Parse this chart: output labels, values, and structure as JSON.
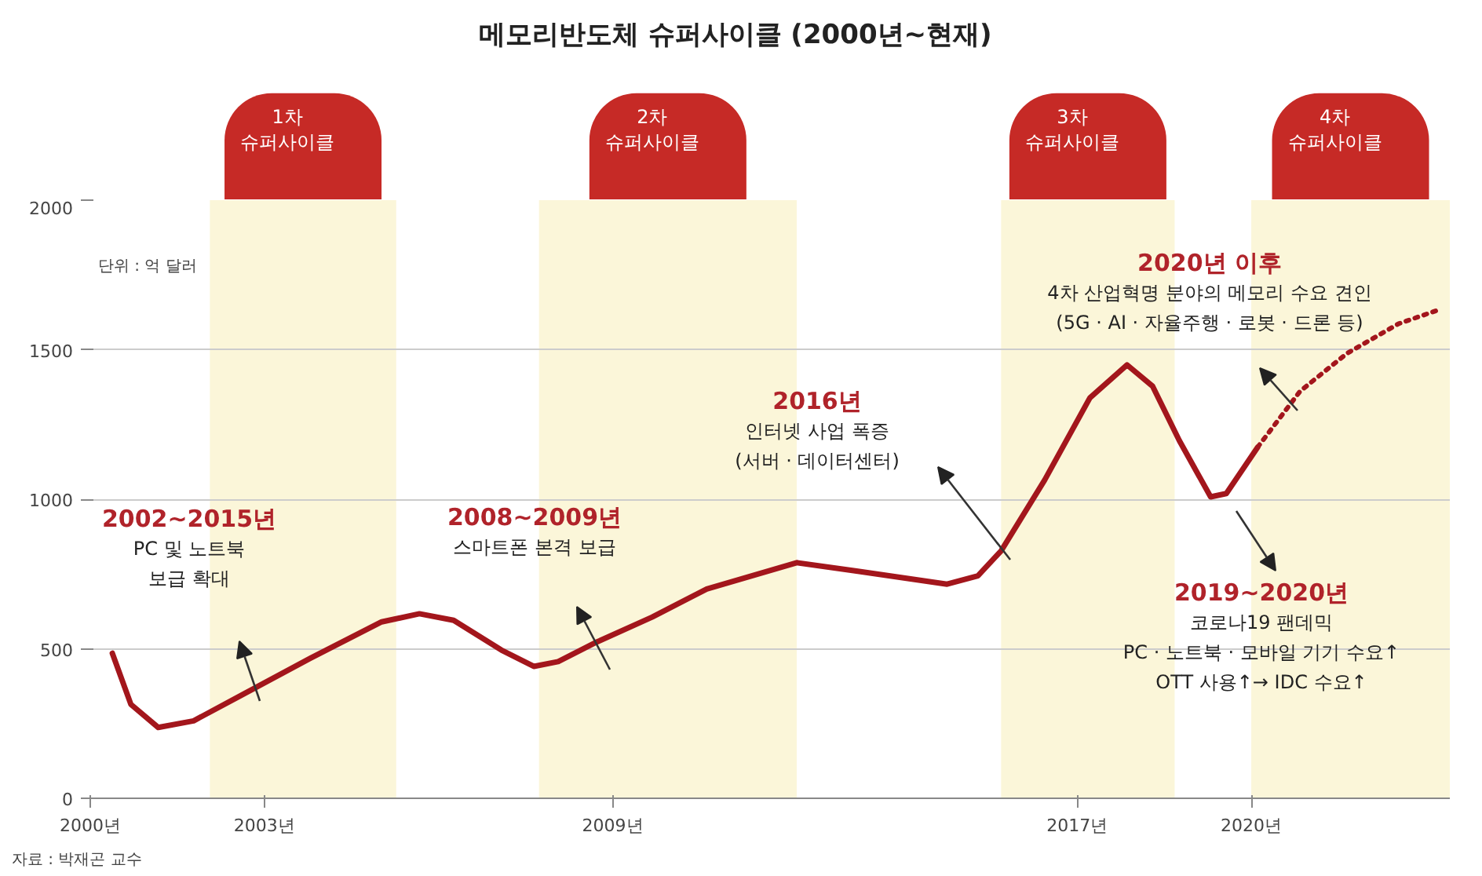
{
  "chart_data": {
    "type": "line",
    "title": "메모리반도체 슈퍼사이클 (2000년~현재)",
    "xlim": [
      2000,
      2023.42
    ],
    "ylim": [
      0,
      2000
    ],
    "xticks": [
      {
        "value": 2000,
        "label": "2000년"
      },
      {
        "value": 2003,
        "label": "2003년"
      },
      {
        "value": 2009,
        "label": "2009년"
      },
      {
        "value": 2017,
        "label": "2017년"
      },
      {
        "value": 2020,
        "label": "2020년"
      }
    ],
    "yticks": [
      0,
      500,
      1000,
      1500,
      2000
    ],
    "grid": "y",
    "line_style": "solid",
    "series": [
      {
        "color": "#a3161c",
        "x": [
          2000.38,
          2000.7,
          2001.17,
          2001.78,
          2002.58,
          2003.79,
          2005.02,
          2005.67,
          2006.26,
          2007.08,
          2007.64,
          2008.06,
          2008.73,
          2009.68,
          2010.62,
          2012.17,
          2013.2,
          2014.76,
          2015.29,
          2015.69,
          2016.44,
          2017.22,
          2017.86,
          2018.3,
          2018.76,
          2019.3,
          2019.57,
          2020.11
        ],
        "values": [
          485,
          314,
          237,
          259,
          342,
          468,
          590,
          617,
          595,
          496,
          441,
          457,
          523,
          606,
          700,
          788,
          760,
          716,
          744,
          827,
          1064,
          1339,
          1449,
          1378,
          1196,
          1008,
          1019,
          1174
        ]
      },
      {
        "color": "#a3161c",
        "line_style": "dotted",
        "x": [
          2020.11,
          2020.84,
          2021.65,
          2022.54,
          2023.27
        ],
        "values": [
          1174,
          1361,
          1488,
          1587,
          1636
        ]
      }
    ],
    "bands": [
      {
        "axis": "x",
        "from": 2002.06,
        "to": 2005.27,
        "label": "1차\n슈퍼사이클",
        "color": "#fbf6d9"
      },
      {
        "axis": "x",
        "from": 2007.73,
        "to": 2012.17,
        "label": "2차\n슈퍼사이클",
        "color": "#fbf6d9"
      },
      {
        "axis": "x",
        "from": 2015.69,
        "to": 2018.68,
        "label": "3차\n슈퍼사이클",
        "color": "#fbf6d9"
      },
      {
        "axis": "x",
        "from": 2020,
        "to": 2023.42,
        "label": "4차\n슈퍼사이클",
        "color": "#fbf6d9"
      }
    ],
    "annotations": [
      "단위 : 억 달러",
      "2002~2015년\nPC 및 노트북\n보급 확대",
      "2008~2009년\n스마트폰 본격 보급",
      "2016년\n인터넷 사업 폭증\n(서버 · 데이터센터)",
      "2020년 이후\n4차 산업혁명 분야의 메모리 수요 견인\n(5G · AI · 자율주행 · 로봇 · 드론 등)",
      "2019~2020년\n코로나19 팬데믹\nPC · 노트북 · 모바일 기기 수요↑\nOTT 사용↑→ IDC 수요↑",
      "자료 : 박재곤 교수"
    ]
  }
}
